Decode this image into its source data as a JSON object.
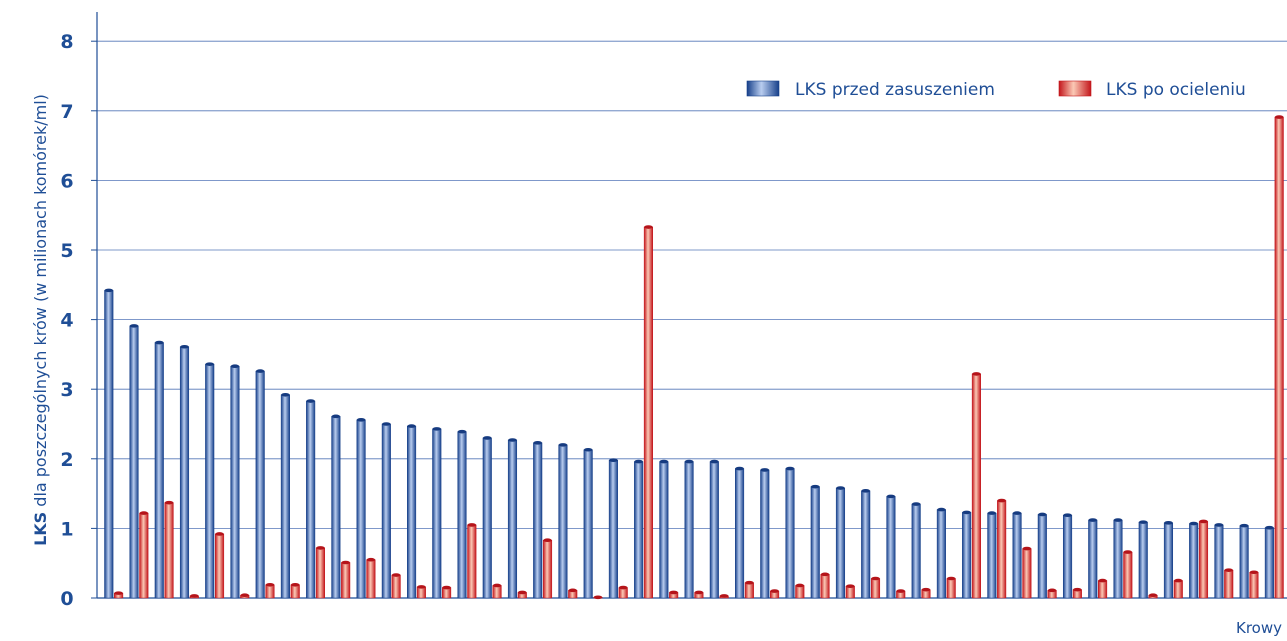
{
  "chart_data": {
    "type": "bar",
    "title": "",
    "ylabel_bold": "LKS",
    "ylabel_rest": " dla poszczególnych krów (w milionach komórek/ml)",
    "xlabel": "Krowy",
    "ylim": [
      0,
      8
    ],
    "yticks": [
      0,
      1,
      2,
      3,
      4,
      5,
      6,
      7,
      8
    ],
    "grid": true,
    "legend_position": "top-right",
    "colors": {
      "before": "#1f4e96",
      "after": "#d7262b",
      "grid": "#5577b8",
      "text": "#1f4e96"
    },
    "series": [
      {
        "name": "LKS przed zasuszeniem",
        "values": [
          4.42,
          3.91,
          3.67,
          3.61,
          3.36,
          3.33,
          3.26,
          2.92,
          2.83,
          2.61,
          2.56,
          2.5,
          2.47,
          2.43,
          2.39,
          2.3,
          2.27,
          2.23,
          2.2,
          2.13,
          1.98,
          1.96,
          1.96,
          1.96,
          1.96,
          1.86,
          1.84,
          1.86,
          1.6,
          1.58,
          1.54,
          1.46,
          1.35,
          1.27,
          1.23,
          1.22,
          1.22,
          1.2,
          1.19,
          1.12,
          1.12,
          1.09,
          1.08,
          1.07,
          1.05,
          1.04,
          1.01
        ]
      },
      {
        "name": "LKS po ocieleniu",
        "values": [
          0.07,
          1.22,
          1.37,
          0.03,
          0.92,
          0.04,
          0.19,
          0.19,
          0.72,
          0.51,
          0.55,
          0.33,
          0.16,
          0.15,
          1.05,
          0.18,
          0.08,
          0.83,
          0.11,
          0.01,
          0.15,
          5.33,
          0.08,
          0.08,
          0.03,
          0.22,
          0.1,
          0.18,
          0.34,
          0.17,
          0.28,
          0.1,
          0.12,
          0.28,
          3.22,
          1.4,
          0.71,
          0.11,
          0.12,
          0.25,
          0.66,
          0.04,
          0.25,
          1.1,
          0.4,
          0.37,
          6.91
        ]
      }
    ]
  }
}
